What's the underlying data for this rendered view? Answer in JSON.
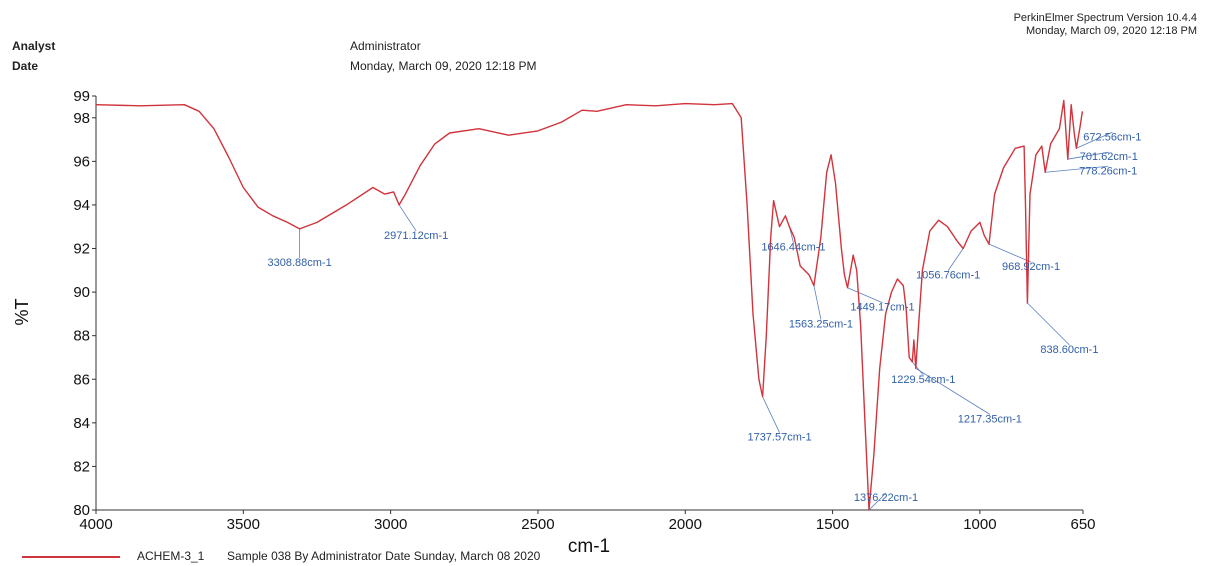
{
  "header": {
    "analyst_label": "Analyst",
    "date_label": "Date",
    "analyst_value": "Administrator",
    "date_value": "Monday, March 09, 2020 12:18 PM",
    "software_line1": "PerkinElmer Spectrum Version 10.4.4",
    "software_line2": "Monday, March 09, 2020 12:18 PM"
  },
  "legend": {
    "sample_name": "ACHEM-3_1",
    "description": "Sample 038 By Administrator Date Sunday, March 08 2020"
  },
  "colors": {
    "trace": "#d0343c",
    "peak_label": "#2f5fa8",
    "leader": "#5a7fc0"
  },
  "chart_data": {
    "type": "line",
    "xlabel": "cm-1",
    "ylabel": "%T",
    "xlim": [
      4000,
      650
    ],
    "ylim": [
      80,
      99
    ],
    "x_reversed": true,
    "grid": false,
    "legend_placement": "bottom-left",
    "x_ticks": [
      4000,
      3500,
      3000,
      2500,
      2000,
      1500,
      1000,
      650
    ],
    "y_ticks": [
      80,
      82,
      84,
      86,
      88,
      90,
      92,
      94,
      96,
      98,
      99
    ],
    "series": [
      {
        "name": "ACHEM-3_1",
        "points": [
          [
            4000,
            98.6
          ],
          [
            3850,
            98.55
          ],
          [
            3700,
            98.6
          ],
          [
            3650,
            98.3
          ],
          [
            3600,
            97.5
          ],
          [
            3550,
            96.2
          ],
          [
            3500,
            94.8
          ],
          [
            3450,
            93.9
          ],
          [
            3400,
            93.5
          ],
          [
            3350,
            93.2
          ],
          [
            3308.88,
            92.9
          ],
          [
            3250,
            93.2
          ],
          [
            3150,
            94.0
          ],
          [
            3060,
            94.8
          ],
          [
            3020,
            94.5
          ],
          [
            2990,
            94.6
          ],
          [
            2971.12,
            94.0
          ],
          [
            2950,
            94.5
          ],
          [
            2900,
            95.8
          ],
          [
            2850,
            96.8
          ],
          [
            2800,
            97.3
          ],
          [
            2700,
            97.5
          ],
          [
            2600,
            97.2
          ],
          [
            2500,
            97.4
          ],
          [
            2420,
            97.8
          ],
          [
            2350,
            98.35
          ],
          [
            2300,
            98.3
          ],
          [
            2200,
            98.6
          ],
          [
            2100,
            98.55
          ],
          [
            2000,
            98.65
          ],
          [
            1900,
            98.6
          ],
          [
            1840,
            98.65
          ],
          [
            1810,
            98.0
          ],
          [
            1790,
            94.0
          ],
          [
            1770,
            89.0
          ],
          [
            1750,
            86.0
          ],
          [
            1737.57,
            85.2
          ],
          [
            1725,
            88.0
          ],
          [
            1710,
            92.5
          ],
          [
            1700,
            94.2
          ],
          [
            1680,
            93.0
          ],
          [
            1660,
            93.5
          ],
          [
            1646.44,
            93.0
          ],
          [
            1630,
            92.5
          ],
          [
            1610,
            91.2
          ],
          [
            1580,
            90.8
          ],
          [
            1563.25,
            90.3
          ],
          [
            1540,
            92.5
          ],
          [
            1520,
            95.5
          ],
          [
            1505,
            96.3
          ],
          [
            1490,
            95.0
          ],
          [
            1470,
            92.0
          ],
          [
            1460,
            90.8
          ],
          [
            1449.17,
            90.2
          ],
          [
            1430,
            91.7
          ],
          [
            1418,
            91.0
          ],
          [
            1405,
            88.5
          ],
          [
            1390,
            84.0
          ],
          [
            1376.22,
            80.0
          ],
          [
            1360,
            82.5
          ],
          [
            1340,
            86.5
          ],
          [
            1320,
            89.0
          ],
          [
            1300,
            90.0
          ],
          [
            1280,
            90.6
          ],
          [
            1260,
            90.3
          ],
          [
            1250,
            89.2
          ],
          [
            1240,
            87.0
          ],
          [
            1229.54,
            86.8
          ],
          [
            1224,
            87.8
          ],
          [
            1217.35,
            86.5
          ],
          [
            1208,
            88.5
          ],
          [
            1195,
            91.0
          ],
          [
            1170,
            92.8
          ],
          [
            1140,
            93.3
          ],
          [
            1110,
            93.0
          ],
          [
            1075,
            92.3
          ],
          [
            1056.76,
            92.0
          ],
          [
            1030,
            92.8
          ],
          [
            1000,
            93.2
          ],
          [
            985,
            92.6
          ],
          [
            968.92,
            92.2
          ],
          [
            950,
            94.5
          ],
          [
            920,
            95.7
          ],
          [
            880,
            96.6
          ],
          [
            850,
            96.7
          ],
          [
            845,
            94.0
          ],
          [
            838.6,
            89.5
          ],
          [
            830,
            94.5
          ],
          [
            810,
            96.3
          ],
          [
            790,
            96.7
          ],
          [
            778.26,
            95.5
          ],
          [
            760,
            96.8
          ],
          [
            730,
            97.5
          ],
          [
            715,
            98.8
          ],
          [
            701.62,
            96.1
          ],
          [
            690,
            98.6
          ],
          [
            680,
            97.3
          ],
          [
            672.56,
            96.6
          ],
          [
            660,
            97.6
          ],
          [
            652,
            98.3
          ]
        ]
      }
    ],
    "annotations": [
      {
        "x": 3308.88,
        "y": 92.9,
        "text": "3308.88cm-1"
      },
      {
        "x": 2971.12,
        "y": 94.0,
        "text": "2971.12cm-1"
      },
      {
        "x": 1737.57,
        "y": 85.2,
        "text": "1737.57cm-1"
      },
      {
        "x": 1646.44,
        "y": 93.0,
        "text": "1646.44cm-1"
      },
      {
        "x": 1563.25,
        "y": 90.3,
        "text": "1563.25cm-1"
      },
      {
        "x": 1449.17,
        "y": 90.2,
        "text": "1449.17cm-1"
      },
      {
        "x": 1376.22,
        "y": 80.0,
        "text": "1376.22cm-1"
      },
      {
        "x": 1229.54,
        "y": 86.8,
        "text": "1229.54cm-1"
      },
      {
        "x": 1217.35,
        "y": 86.5,
        "text": "1217.35cm-1"
      },
      {
        "x": 1056.76,
        "y": 92.0,
        "text": "1056.76cm-1"
      },
      {
        "x": 968.92,
        "y": 92.2,
        "text": "968.92cm-1"
      },
      {
        "x": 838.6,
        "y": 89.5,
        "text": "838.60cm-1"
      },
      {
        "x": 778.26,
        "y": 95.5,
        "text": "778.26cm-1"
      },
      {
        "x": 701.62,
        "y": 96.1,
        "text": "701.62cm-1"
      },
      {
        "x": 672.56,
        "y": 96.6,
        "text": "672.56cm-1"
      }
    ]
  }
}
